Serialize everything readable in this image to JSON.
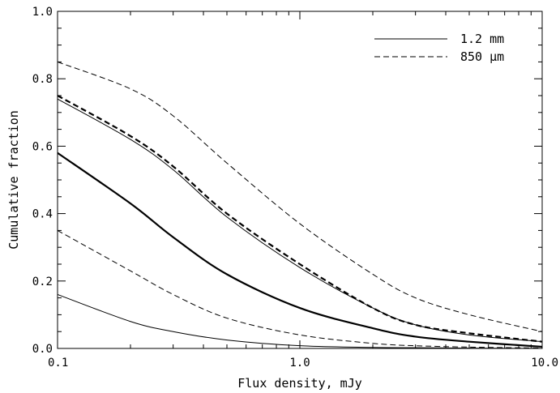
{
  "chart_data": {
    "type": "line",
    "x_scale": "log",
    "xlabel": "Flux density, mJy",
    "ylabel": "Cumulative fraction",
    "xlim": [
      0.1,
      10.0
    ],
    "ylim": [
      0.0,
      1.0
    ],
    "grid": false,
    "legend_position": "top-right",
    "x_tick_labels": [
      "0.1",
      "1.0",
      "10.0"
    ],
    "x_tick_values": [
      0.1,
      1.0,
      10.0
    ],
    "y_tick_labels": [
      "0.0",
      "0.2",
      "0.4",
      "0.6",
      "0.8",
      "1.0"
    ],
    "y_tick_values": [
      0.0,
      0.2,
      0.4,
      0.6,
      0.8,
      1.0
    ],
    "legend": [
      {
        "label": "1.2 mm",
        "style": "solid"
      },
      {
        "label": "850 μm",
        "style": "dashed"
      }
    ],
    "x": [
      0.1,
      0.2,
      0.3,
      0.5,
      1.0,
      2.0,
      3.0,
      5.0,
      10.0
    ],
    "series": [
      {
        "style": "dashed",
        "weight": "thin",
        "values": [
          0.85,
          0.77,
          0.69,
          0.55,
          0.37,
          0.22,
          0.15,
          0.1,
          0.05
        ]
      },
      {
        "style": "dashed",
        "weight": "thick",
        "values": [
          0.75,
          0.63,
          0.54,
          0.4,
          0.25,
          0.12,
          0.07,
          0.045,
          0.02
        ]
      },
      {
        "style": "solid",
        "weight": "thin",
        "values": [
          0.74,
          0.62,
          0.53,
          0.39,
          0.24,
          0.12,
          0.07,
          0.04,
          0.02
        ]
      },
      {
        "style": "solid",
        "weight": "thick",
        "values": [
          0.58,
          0.43,
          0.33,
          0.22,
          0.12,
          0.06,
          0.035,
          0.02,
          0.005
        ]
      },
      {
        "style": "dashed",
        "weight": "thin",
        "values": [
          0.35,
          0.23,
          0.16,
          0.09,
          0.04,
          0.015,
          0.008,
          0.004,
          0.001
        ]
      },
      {
        "style": "solid",
        "weight": "thin",
        "values": [
          0.16,
          0.08,
          0.05,
          0.025,
          0.008,
          0.003,
          0.002,
          0.001,
          0.0
        ]
      }
    ]
  }
}
